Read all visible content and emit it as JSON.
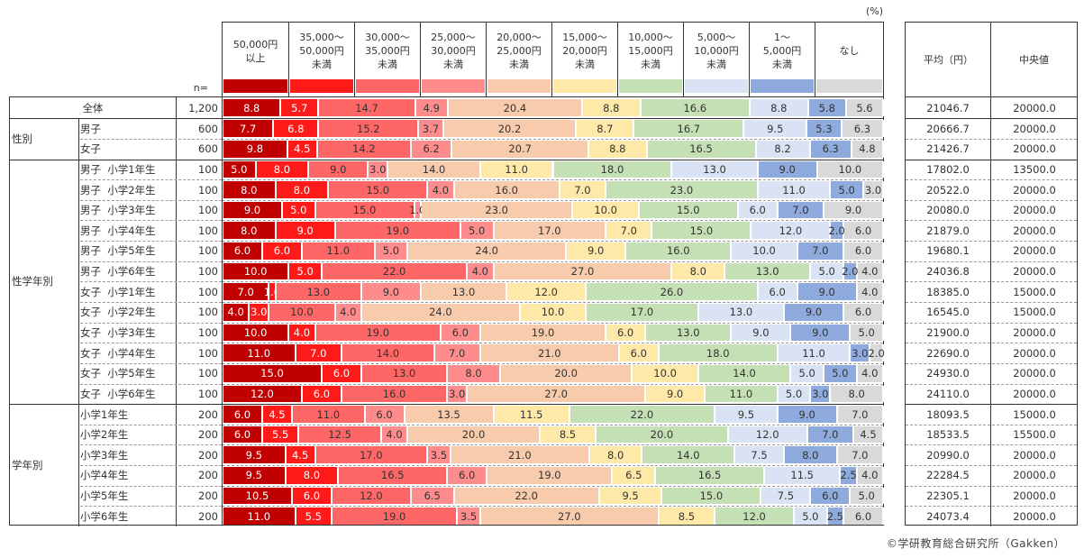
{
  "unit_label": "(%)",
  "n_label": "n=",
  "copyright": "©学研教育総合研究所（Gakken）",
  "right_headers": [
    "平均（円）",
    "中央値"
  ],
  "chart_data": {
    "type": "bar",
    "orientation": "horizontal-stacked-100",
    "unit": "%",
    "categories_legend": [
      {
        "label": "50,000円\n以上",
        "color": "#C00000",
        "text_color": "#ffffff"
      },
      {
        "label": "35,000～\n50,000円\n未満",
        "color": "#FF1A1A",
        "text_color": "#ffffff"
      },
      {
        "label": "30,000～\n35,000円\n未満",
        "color": "#FF6666",
        "text_color": "#333333"
      },
      {
        "label": "25,000～\n30,000円\n未満",
        "color": "#FF8C8C",
        "text_color": "#333333"
      },
      {
        "label": "20,000～\n25,000円\n未満",
        "color": "#F8CBAD",
        "text_color": "#333333"
      },
      {
        "label": "15,000～\n20,000円\n未満",
        "color": "#FFE9A8",
        "text_color": "#333333"
      },
      {
        "label": "10,000～\n15,000円\n未満",
        "color": "#C5E0B4",
        "text_color": "#333333"
      },
      {
        "label": "5,000～\n10,000円\n未満",
        "color": "#DAE3F3",
        "text_color": "#333333"
      },
      {
        "label": "1～\n5,000円\n未満",
        "color": "#8FAADC",
        "text_color": "#333333"
      },
      {
        "label": "なし",
        "color": "#D9D9D9",
        "text_color": "#333333"
      }
    ],
    "groups": [
      {
        "name": "",
        "rows": [
          {
            "label": "全体",
            "n": "1,200",
            "values": [
              8.8,
              5.7,
              14.7,
              4.9,
              20.4,
              8.8,
              16.6,
              8.8,
              5.8,
              5.6
            ],
            "mean": "21046.7",
            "median": "20000.0"
          }
        ]
      },
      {
        "name": "性別",
        "rows": [
          {
            "label": "男子",
            "n": "600",
            "values": [
              7.7,
              6.8,
              15.2,
              3.7,
              20.2,
              8.7,
              16.7,
              9.5,
              5.3,
              6.3
            ],
            "mean": "20666.7",
            "median": "20000.0"
          },
          {
            "label": "女子",
            "n": "600",
            "values": [
              9.8,
              4.5,
              14.2,
              6.2,
              20.7,
              8.8,
              16.5,
              8.2,
              6.3,
              4.8
            ],
            "mean": "21426.7",
            "median": "20000.0"
          }
        ]
      },
      {
        "name": "性学年別",
        "rows": [
          {
            "label": "男子  小学1年生",
            "n": "100",
            "values": [
              5.0,
              8.0,
              9.0,
              3.0,
              14.0,
              11.0,
              18.0,
              13.0,
              9.0,
              10.0
            ],
            "mean": "17802.0",
            "median": "13500.0"
          },
          {
            "label": "男子  小学2年生",
            "n": "100",
            "values": [
              8.0,
              8.0,
              15.0,
              4.0,
              16.0,
              7.0,
              23.0,
              11.0,
              5.0,
              3.0
            ],
            "mean": "20522.0",
            "median": "20000.0"
          },
          {
            "label": "男子  小学3年生",
            "n": "100",
            "values": [
              9.0,
              5.0,
              15.0,
              1.0,
              23.0,
              10.0,
              15.0,
              6.0,
              7.0,
              9.0
            ],
            "mean": "20080.0",
            "median": "20000.0"
          },
          {
            "label": "男子  小学4年生",
            "n": "100",
            "values": [
              8.0,
              9.0,
              19.0,
              5.0,
              17.0,
              7.0,
              15.0,
              12.0,
              2.0,
              6.0
            ],
            "mean": "21879.0",
            "median": "20000.0"
          },
          {
            "label": "男子  小学5年生",
            "n": "100",
            "values": [
              6.0,
              6.0,
              11.0,
              5.0,
              24.0,
              9.0,
              16.0,
              10.0,
              7.0,
              6.0
            ],
            "mean": "19680.1",
            "median": "20000.0"
          },
          {
            "label": "男子  小学6年生",
            "n": "100",
            "values": [
              10.0,
              5.0,
              22.0,
              4.0,
              27.0,
              8.0,
              13.0,
              5.0,
              2.0,
              4.0
            ],
            "mean": "24036.8",
            "median": "20000.0"
          },
          {
            "label": "女子  小学1年生",
            "n": "100",
            "values": [
              7.0,
              1.0,
              13.0,
              9.0,
              13.0,
              12.0,
              26.0,
              6.0,
              9.0,
              4.0
            ],
            "mean": "18385.0",
            "median": "15000.0"
          },
          {
            "label": "女子  小学2年生",
            "n": "100",
            "values": [
              4.0,
              3.0,
              10.0,
              4.0,
              24.0,
              10.0,
              17.0,
              13.0,
              9.0,
              6.0
            ],
            "mean": "16545.0",
            "median": "15000.0"
          },
          {
            "label": "女子  小学3年生",
            "n": "100",
            "values": [
              10.0,
              4.0,
              19.0,
              6.0,
              19.0,
              6.0,
              13.0,
              9.0,
              9.0,
              5.0
            ],
            "mean": "21900.0",
            "median": "20000.0"
          },
          {
            "label": "女子  小学4年生",
            "n": "100",
            "values": [
              11.0,
              7.0,
              14.0,
              7.0,
              21.0,
              6.0,
              18.0,
              11.0,
              3.0,
              2.0
            ],
            "mean": "22690.0",
            "median": "20000.0"
          },
          {
            "label": "女子  小学5年生",
            "n": "100",
            "values": [
              15.0,
              6.0,
              13.0,
              8.0,
              20.0,
              10.0,
              14.0,
              5.0,
              5.0,
              4.0
            ],
            "mean": "24930.0",
            "median": "20000.0"
          },
          {
            "label": "女子  小学6年生",
            "n": "100",
            "values": [
              12.0,
              6.0,
              16.0,
              3.0,
              27.0,
              9.0,
              11.0,
              5.0,
              3.0,
              8.0
            ],
            "mean": "24110.0",
            "median": "20000.0"
          }
        ]
      },
      {
        "name": "学年別",
        "rows": [
          {
            "label": "小学1年生",
            "n": "200",
            "values": [
              6.0,
              4.5,
              11.0,
              6.0,
              13.5,
              11.5,
              22.0,
              9.5,
              9.0,
              7.0
            ],
            "mean": "18093.5",
            "median": "15000.0"
          },
          {
            "label": "小学2年生",
            "n": "200",
            "values": [
              6.0,
              5.5,
              12.5,
              4.0,
              20.0,
              8.5,
              20.0,
              12.0,
              7.0,
              4.5
            ],
            "mean": "18533.5",
            "median": "15500.0"
          },
          {
            "label": "小学3年生",
            "n": "200",
            "values": [
              9.5,
              4.5,
              17.0,
              3.5,
              21.0,
              8.0,
              14.0,
              7.5,
              8.0,
              7.0
            ],
            "mean": "20990.0",
            "median": "20000.0"
          },
          {
            "label": "小学4年生",
            "n": "200",
            "values": [
              9.5,
              8.0,
              16.5,
              6.0,
              19.0,
              6.5,
              16.5,
              11.5,
              2.5,
              4.0
            ],
            "mean": "22284.5",
            "median": "20000.0"
          },
          {
            "label": "小学5年生",
            "n": "200",
            "values": [
              10.5,
              6.0,
              12.0,
              6.5,
              22.0,
              9.5,
              15.0,
              7.5,
              6.0,
              5.0
            ],
            "mean": "22305.1",
            "median": "20000.0"
          },
          {
            "label": "小学6年生",
            "n": "200",
            "values": [
              11.0,
              5.5,
              19.0,
              3.5,
              27.0,
              8.5,
              12.0,
              5.0,
              2.5,
              6.0
            ],
            "mean": "24073.4",
            "median": "20000.0"
          }
        ]
      }
    ]
  }
}
